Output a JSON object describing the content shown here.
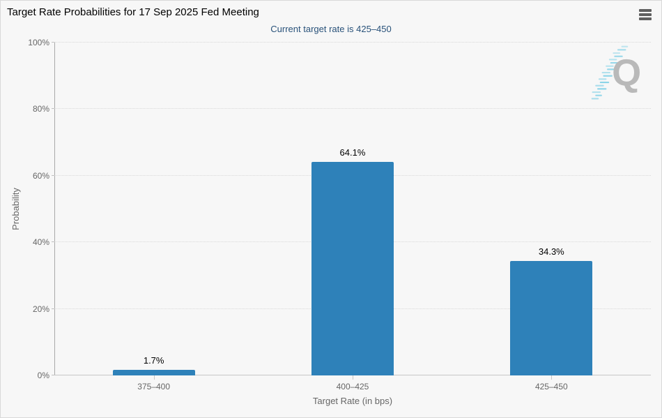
{
  "chart_data": {
    "type": "bar",
    "title": "Target Rate Probabilities for 17 Sep 2025 Fed Meeting",
    "subtitle": "Current target rate is 425–450",
    "categories": [
      "375–400",
      "400–425",
      "425–450"
    ],
    "values": [
      1.7,
      64.1,
      34.3
    ],
    "value_labels": [
      "1.7%",
      "64.1%",
      "34.3%"
    ],
    "xlabel": "Target Rate (in bps)",
    "ylabel": "Probability",
    "ylim": [
      0,
      100
    ],
    "yticks": [
      0,
      20,
      40,
      60,
      80,
      100
    ],
    "ytick_suffix": "%",
    "grid": "dotted horizontal",
    "legend": "none",
    "bar_color": "#2e81b9"
  },
  "menu": {
    "icon": "hamburger-menu-icon"
  },
  "watermark": {
    "letter": "Q",
    "letter_color": "#b9b9b9",
    "dash_color": "#6fcbe4"
  },
  "colors": {
    "background": "#f7f7f7",
    "border": "#d9d9d9",
    "title_text": "#000000",
    "subtitle_text": "#29527a",
    "axis_text": "#666666",
    "axis_line": "#a9a9a9",
    "gridline": "#d9d9d9",
    "bar": "#2e81b9"
  }
}
